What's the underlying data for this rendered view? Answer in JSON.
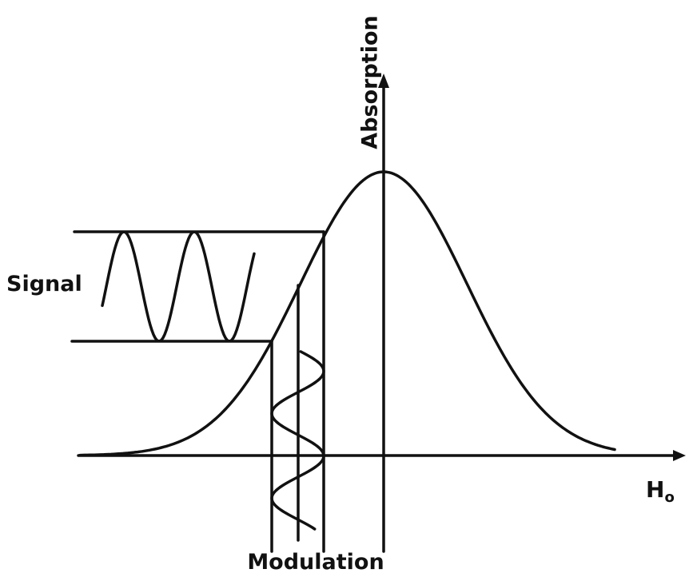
{
  "labels": {
    "y_axis": "Absorption",
    "signal": "Signal",
    "modulation": "Modulation",
    "x_axis": {
      "main": "H",
      "subscript": "o"
    }
  }
}
